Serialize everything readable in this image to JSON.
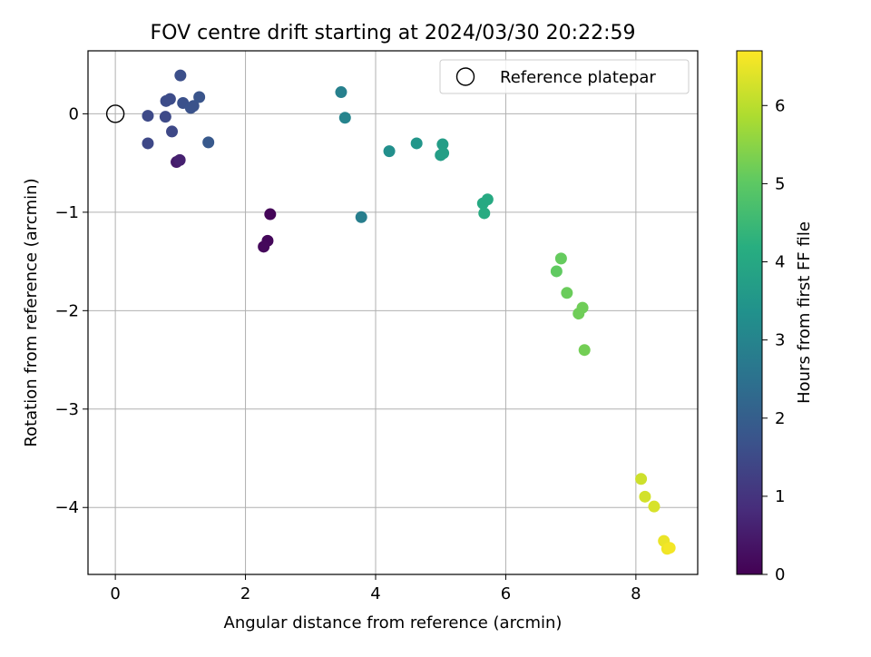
{
  "chart_data": {
    "type": "scatter",
    "title": "FOV centre drift starting at 2024/03/30 20:22:59",
    "xlabel": "Angular distance from reference (arcmin)",
    "ylabel": "Rotation from reference (arcmin)",
    "xlim": [
      -0.42,
      8.95
    ],
    "ylim": [
      -4.68,
      0.64
    ],
    "x_ticks": [
      0,
      2,
      4,
      6,
      8
    ],
    "y_ticks": [
      0,
      -1,
      -2,
      -3,
      -4
    ],
    "x_tick_labels": [
      "0",
      "2",
      "4",
      "6",
      "8"
    ],
    "y_tick_labels": [
      "0",
      "−1",
      "−2",
      "−3",
      "−4"
    ],
    "grid": true,
    "legend": {
      "placement": "top-right",
      "entries": [
        "Reference platepar"
      ]
    },
    "reference_point": {
      "x": 0,
      "y": 0
    },
    "colorbar": {
      "label": "Hours from first FF file",
      "colormap": "viridis",
      "range": [
        0,
        6.7
      ],
      "ticks": [
        0,
        1,
        2,
        3,
        4,
        5,
        6
      ],
      "tick_labels": [
        "0",
        "1",
        "2",
        "3",
        "4",
        "5",
        "6"
      ]
    },
    "points": [
      {
        "x": 0.94,
        "y": -0.49,
        "hours": 0.5
      },
      {
        "x": 0.99,
        "y": -0.47,
        "hours": 0.6
      },
      {
        "x": 2.38,
        "y": -1.02,
        "hours": 0.08
      },
      {
        "x": 2.34,
        "y": -1.29,
        "hours": 0.12
      },
      {
        "x": 2.28,
        "y": -1.35,
        "hours": 0.15
      },
      {
        "x": 0.5,
        "y": -0.3,
        "hours": 1.45
      },
      {
        "x": 0.87,
        "y": -0.18,
        "hours": 1.45
      },
      {
        "x": 0.5,
        "y": -0.02,
        "hours": 1.5
      },
      {
        "x": 0.77,
        "y": -0.03,
        "hours": 1.5
      },
      {
        "x": 0.78,
        "y": 0.13,
        "hours": 1.55
      },
      {
        "x": 0.84,
        "y": 0.15,
        "hours": 1.55
      },
      {
        "x": 1.0,
        "y": 0.39,
        "hours": 1.6
      },
      {
        "x": 1.04,
        "y": 0.11,
        "hours": 1.65
      },
      {
        "x": 1.16,
        "y": 0.06,
        "hours": 1.7
      },
      {
        "x": 1.2,
        "y": 0.08,
        "hours": 1.7
      },
      {
        "x": 1.29,
        "y": 0.17,
        "hours": 1.75
      },
      {
        "x": 1.43,
        "y": -0.29,
        "hours": 1.85
      },
      {
        "x": 3.47,
        "y": 0.22,
        "hours": 2.9
      },
      {
        "x": 3.53,
        "y": -0.04,
        "hours": 3.0
      },
      {
        "x": 3.78,
        "y": -1.05,
        "hours": 2.85
      },
      {
        "x": 4.21,
        "y": -0.38,
        "hours": 3.3
      },
      {
        "x": 4.63,
        "y": -0.3,
        "hours": 3.5
      },
      {
        "x": 5.03,
        "y": -0.31,
        "hours": 3.7
      },
      {
        "x": 5.0,
        "y": -0.42,
        "hours": 3.7
      },
      {
        "x": 5.04,
        "y": -0.4,
        "hours": 3.75
      },
      {
        "x": 5.65,
        "y": -0.91,
        "hours": 4.05
      },
      {
        "x": 5.72,
        "y": -0.87,
        "hours": 4.05
      },
      {
        "x": 5.67,
        "y": -1.01,
        "hours": 4.1
      },
      {
        "x": 6.78,
        "y": -1.6,
        "hours": 5.05
      },
      {
        "x": 6.85,
        "y": -1.47,
        "hours": 5.1
      },
      {
        "x": 6.94,
        "y": -1.82,
        "hours": 5.15
      },
      {
        "x": 7.18,
        "y": -1.97,
        "hours": 5.2
      },
      {
        "x": 7.12,
        "y": -2.03,
        "hours": 5.2
      },
      {
        "x": 7.21,
        "y": -2.4,
        "hours": 5.25
      },
      {
        "x": 8.08,
        "y": -3.71,
        "hours": 6.2
      },
      {
        "x": 8.14,
        "y": -3.89,
        "hours": 6.25
      },
      {
        "x": 8.28,
        "y": -3.99,
        "hours": 6.3
      },
      {
        "x": 8.43,
        "y": -4.34,
        "hours": 6.5
      },
      {
        "x": 8.48,
        "y": -4.42,
        "hours": 6.55
      },
      {
        "x": 8.52,
        "y": -4.41,
        "hours": 6.6
      }
    ]
  }
}
